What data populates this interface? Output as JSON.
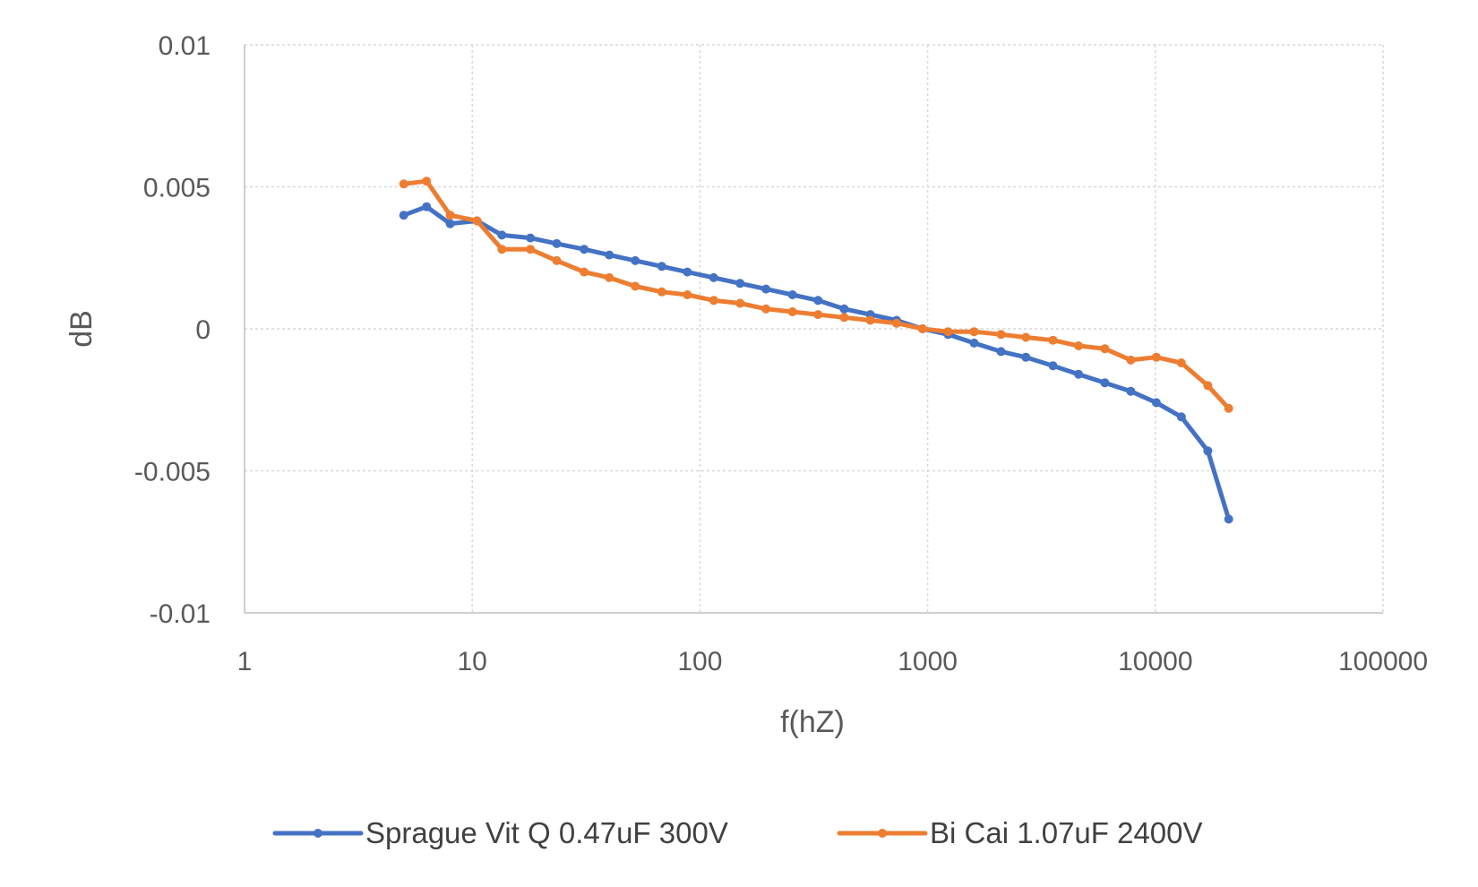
{
  "chart_data": {
    "type": "line",
    "xscale": "log",
    "xlim": [
      1,
      100000
    ],
    "ylim": [
      -0.01,
      0.01
    ],
    "xticks": [
      "1",
      "10",
      "100",
      "1000",
      "10000",
      "100000"
    ],
    "yticks": [
      "0.01",
      "0.005",
      "0",
      "-0.005",
      "-0.01"
    ],
    "xlabel": "f(hZ)",
    "ylabel": "dB",
    "grid": true,
    "legend_position": "bottom",
    "x": [
      5,
      6.3,
      8,
      10.5,
      13.5,
      18,
      23.5,
      31,
      40,
      52,
      68,
      88,
      115,
      150,
      195,
      255,
      330,
      430,
      560,
      730,
      950,
      1230,
      1600,
      2100,
      2700,
      3550,
      4600,
      6000,
      7800,
      10100,
      13000,
      17000,
      21000
    ],
    "series": [
      {
        "name": "Sprague Vit Q 0.47uF 300V",
        "color": "#4472C4",
        "values": [
          0.004,
          0.0043,
          0.0037,
          0.0038,
          0.0033,
          0.0032,
          0.003,
          0.0028,
          0.0026,
          0.0024,
          0.0022,
          0.002,
          0.0018,
          0.0016,
          0.0014,
          0.0012,
          0.001,
          0.0007,
          0.0005,
          0.0003,
          0.0,
          -0.0002,
          -0.0005,
          -0.0008,
          -0.001,
          -0.0013,
          -0.0016,
          -0.0019,
          -0.0022,
          -0.0026,
          -0.0031,
          -0.0043,
          -0.0067
        ]
      },
      {
        "name": "Bi Cai 1.07uF 2400V",
        "color": "#ED7D31",
        "values": [
          0.0051,
          0.0052,
          0.004,
          0.0038,
          0.0028,
          0.0028,
          0.0024,
          0.002,
          0.0018,
          0.0015,
          0.0013,
          0.0012,
          0.001,
          0.0009,
          0.0007,
          0.0006,
          0.0005,
          0.0004,
          0.0003,
          0.0002,
          0.0,
          -0.0001,
          -0.0001,
          -0.0002,
          -0.0003,
          -0.0004,
          -0.0006,
          -0.0007,
          -0.0011,
          -0.001,
          -0.0012,
          -0.002,
          -0.0028
        ]
      }
    ]
  }
}
